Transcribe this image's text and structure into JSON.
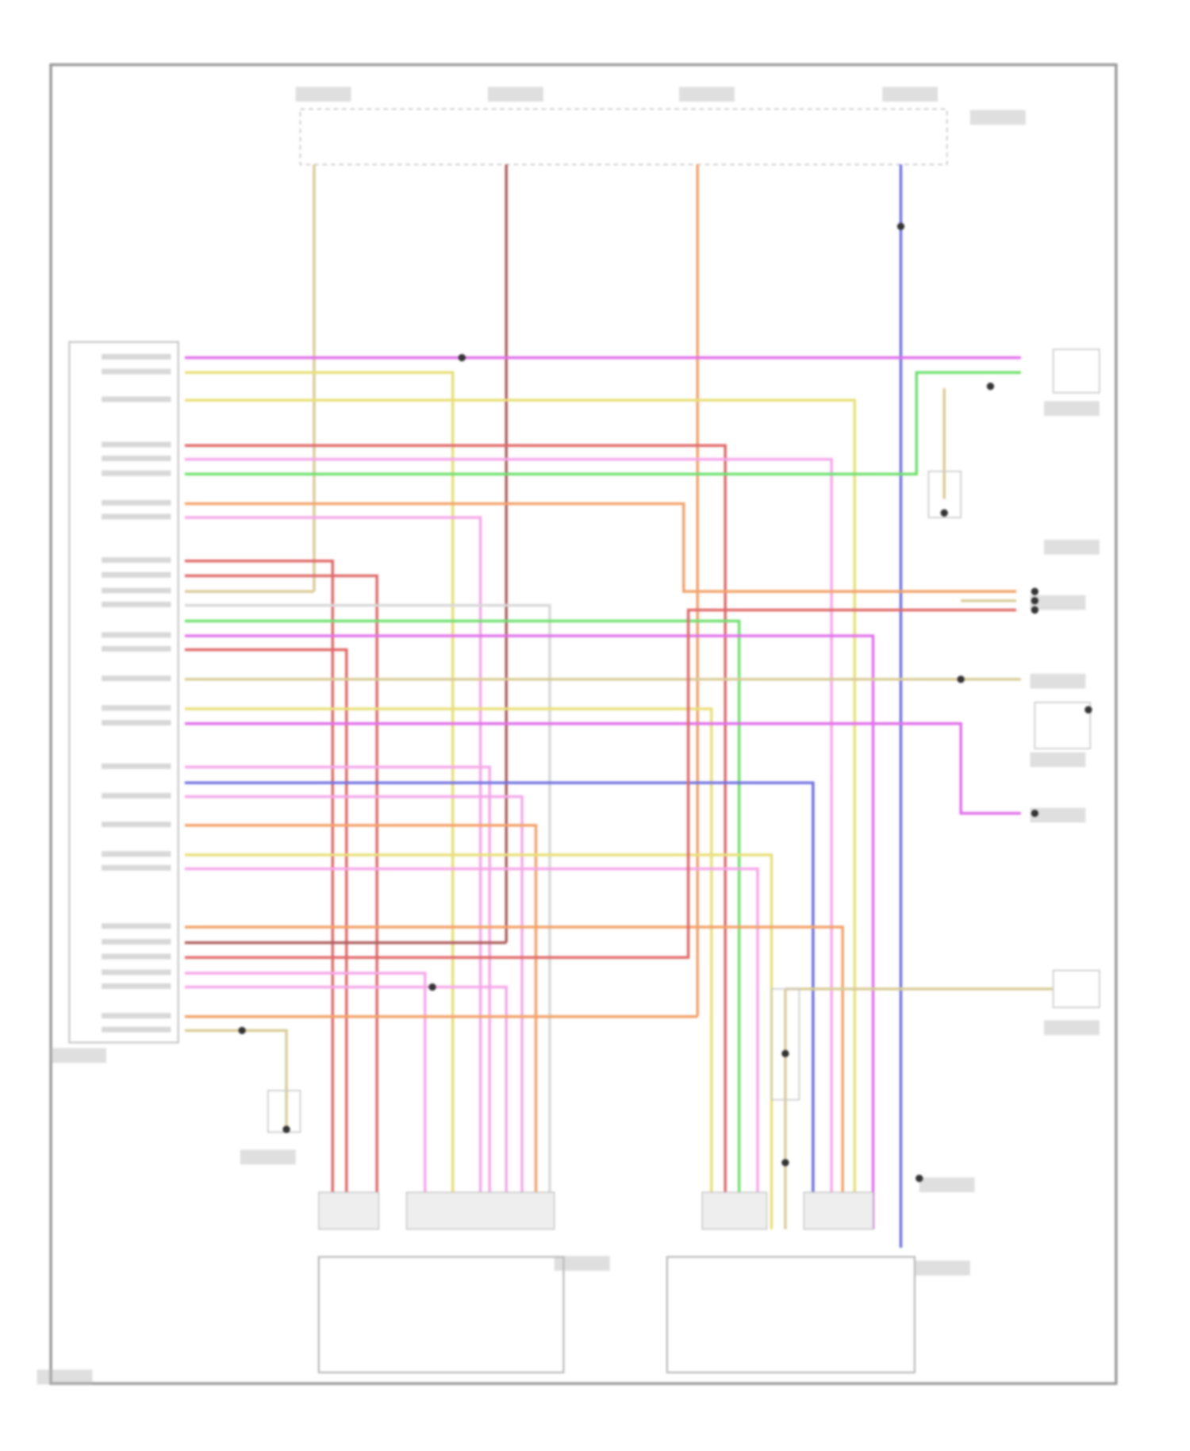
{
  "wire_colors": {
    "magenta": "#e070ea",
    "pink": "#f4a8e8",
    "yellow": "#e8e07a",
    "tan": "#d9cc98",
    "red": "#e06a6a",
    "orange": "#f2a26a",
    "green": "#70e070",
    "blue": "#7070e0",
    "brown": "#b06060",
    "gray": "#d8d8d8"
  },
  "frame_color": "#9a9a9a",
  "label_placeholder_color": "#b8b8b8"
}
